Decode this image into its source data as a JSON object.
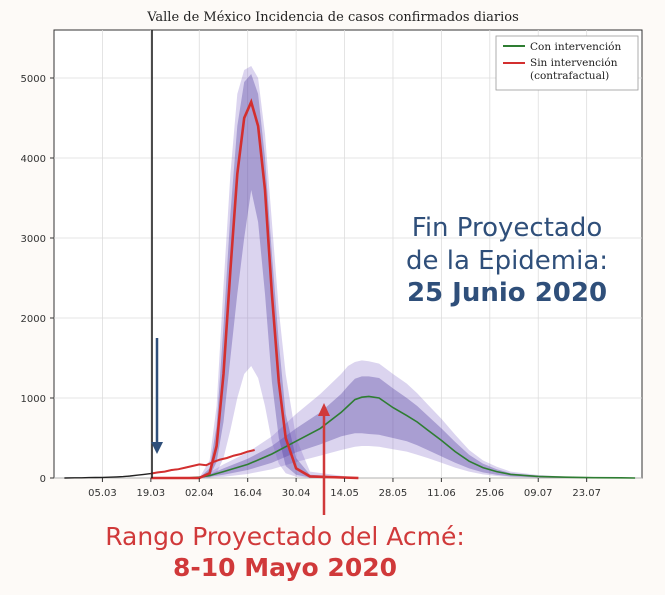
{
  "chart_data": {
    "type": "line",
    "title": "Valle de México Incidencia de casos confirmados diarios",
    "x_tick_labels": [
      "05.03",
      "19.03",
      "02.04",
      "16.04",
      "30.04",
      "14.05",
      "28.05",
      "11.06",
      "25.06",
      "09.07",
      "23.07"
    ],
    "y_tick_labels": [
      "0",
      "1000",
      "2000",
      "3000",
      "4000",
      "5000"
    ],
    "ylim": [
      0,
      5600
    ],
    "grid": true,
    "legend_position": "top-right",
    "series": [
      {
        "name": "Con intervención",
        "color": "#2e7d32",
        "x": [
          0,
          10,
          14,
          17,
          21,
          28,
          35,
          42,
          49,
          55,
          57,
          59,
          61,
          63,
          66,
          70,
          74,
          77,
          80,
          84,
          88,
          92,
          96,
          100,
          104,
          112,
          120,
          128,
          136,
          140
        ],
        "y": [
          0,
          0,
          10,
          30,
          80,
          170,
          300,
          460,
          620,
          820,
          900,
          980,
          1010,
          1020,
          1000,
          880,
          780,
          700,
          600,
          470,
          330,
          210,
          130,
          80,
          45,
          20,
          10,
          4,
          2,
          0
        ],
        "band_inner_low": [
          0,
          0,
          5,
          15,
          40,
          100,
          190,
          320,
          420,
          520,
          540,
          560,
          560,
          550,
          540,
          500,
          460,
          410,
          350,
          270,
          190,
          120,
          70,
          40,
          20,
          8,
          3,
          1,
          0,
          0
        ],
        "band_inner_high": [
          0,
          0,
          15,
          45,
          120,
          240,
          400,
          620,
          820,
          1050,
          1150,
          1240,
          1270,
          1270,
          1250,
          1120,
          1000,
          900,
          780,
          620,
          450,
          290,
          180,
          110,
          60,
          28,
          14,
          6,
          3,
          0
        ],
        "band_outer_low": [
          0,
          0,
          2,
          6,
          15,
          50,
          110,
          200,
          280,
          350,
          370,
          390,
          400,
          400,
          390,
          360,
          330,
          290,
          250,
          190,
          130,
          80,
          45,
          25,
          12,
          5,
          2,
          1,
          0,
          0
        ],
        "band_outer_high": [
          0,
          0,
          25,
          70,
          170,
          320,
          520,
          800,
          1050,
          1300,
          1400,
          1450,
          1470,
          1460,
          1430,
          1300,
          1180,
          1060,
          920,
          740,
          540,
          350,
          220,
          140,
          80,
          38,
          18,
          8,
          4,
          0
        ]
      },
      {
        "name": "Sin intervención (contrafactual)",
        "color": "#d32f2f",
        "x": [
          0,
          10,
          14,
          17,
          19,
          21,
          23,
          25,
          27,
          29,
          31,
          33,
          35,
          37,
          39,
          42,
          46,
          60
        ],
        "y": [
          0,
          0,
          0,
          60,
          400,
          1300,
          2600,
          3800,
          4500,
          4700,
          4400,
          3600,
          2300,
          1200,
          500,
          120,
          20,
          0
        ],
        "band_inner_low": [
          0,
          0,
          0,
          20,
          200,
          700,
          1500,
          2300,
          3000,
          3600,
          3200,
          2300,
          1200,
          500,
          150,
          40,
          5,
          0
        ],
        "band_inner_high": [
          0,
          0,
          0,
          120,
          650,
          1900,
          3300,
          4400,
          4950,
          5050,
          4800,
          4000,
          2800,
          1700,
          800,
          250,
          40,
          0
        ],
        "band_outer_low": [
          0,
          0,
          0,
          5,
          60,
          250,
          600,
          1000,
          1300,
          1400,
          1250,
          900,
          450,
          180,
          60,
          15,
          2,
          0
        ],
        "band_outer_high": [
          0,
          0,
          0,
          220,
          900,
          2400,
          3800,
          4800,
          5100,
          5150,
          5000,
          4300,
          3200,
          2100,
          1300,
          500,
          80,
          0
        ]
      }
    ],
    "observed": {
      "color": "#222222",
      "x": [
        -25,
        -22,
        -20,
        -18,
        -16,
        -14,
        -12,
        -10,
        -8,
        -6,
        -4,
        -2,
        0,
        2,
        4,
        6,
        8,
        10,
        12,
        14,
        16,
        18,
        20,
        22,
        24,
        26,
        28,
        30
      ],
      "y": [
        0,
        2,
        3,
        5,
        6,
        8,
        10,
        14,
        18,
        25,
        35,
        45,
        55,
        70,
        80,
        100,
        110,
        130,
        150,
        170,
        160,
        200,
        230,
        250,
        280,
        300,
        330,
        350
      ]
    },
    "intervention_line_label": ""
  },
  "annotations": {
    "end": {
      "line1": "Fin Proyectado",
      "line2": "de la Epidemia:",
      "line3": "25 Junio 2020",
      "color": "#2f4f7a"
    },
    "peak": {
      "line1": "Rango Proyectado del Acmé:",
      "line2": "8-10 Mayo 2020",
      "color": "#d0393a"
    }
  }
}
